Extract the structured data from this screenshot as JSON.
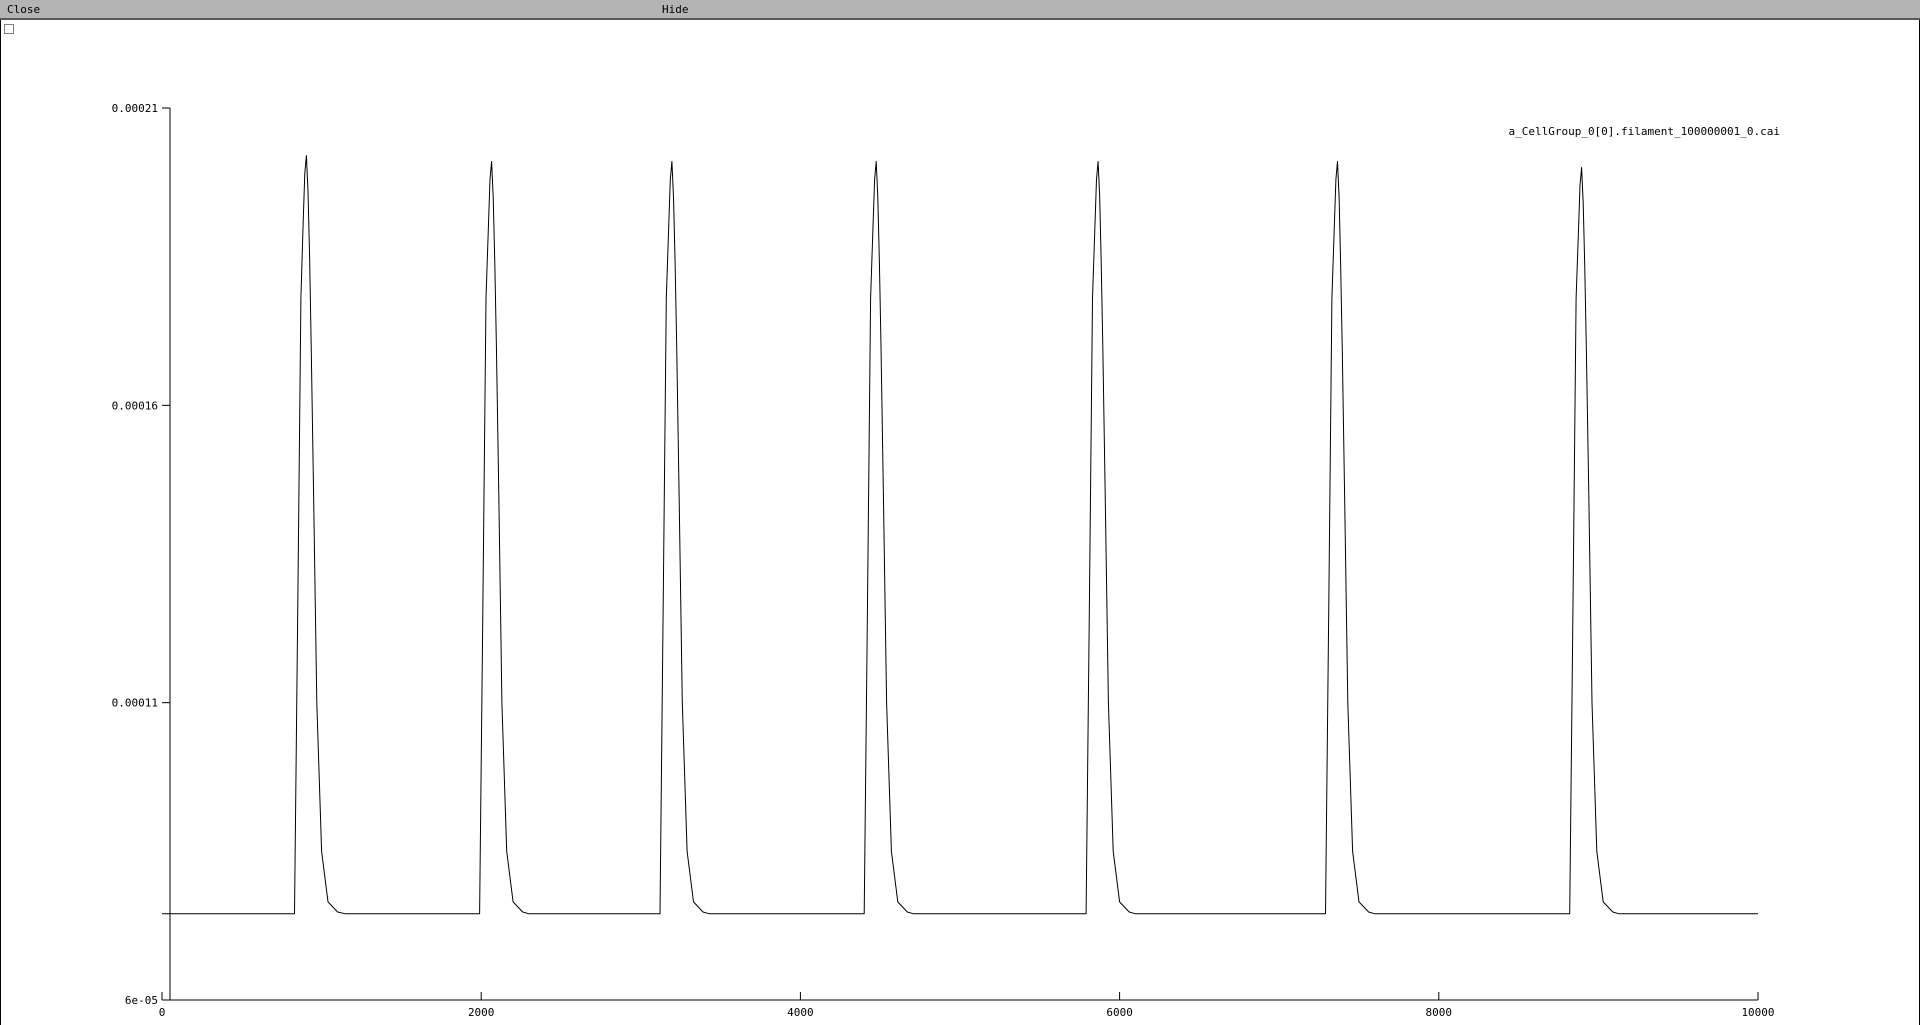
{
  "toolbar": {
    "close_label": "Close",
    "hide_label": "Hide"
  },
  "chart_data": {
    "type": "line",
    "title": "",
    "xlabel": "",
    "ylabel": "",
    "xlim": [
      0,
      10000
    ],
    "ylim": [
      6e-05,
      0.00021
    ],
    "x_ticks": [
      0,
      2000,
      4000,
      6000,
      8000,
      10000
    ],
    "x_tick_labels": [
      "0",
      "2000",
      "4000",
      "6000",
      "8000",
      "10000"
    ],
    "y_ticks": [
      6e-05,
      0.00011,
      0.00016,
      0.00021
    ],
    "y_tick_labels": [
      "6e-05",
      "0.00011",
      "0.00016",
      "0.00021"
    ],
    "grid": false,
    "legend": "top-right",
    "series": [
      {
        "name": "a_CellGroup_0[0].filament_100000001_0.cai",
        "color": "#000000",
        "x": [
          0,
          830,
          850,
          870,
          885,
          895,
          905,
          915,
          925,
          935,
          950,
          970,
          1000,
          1040,
          1100,
          1150,
          1990,
          2010,
          2030,
          2045,
          2055,
          2065,
          2075,
          2085,
          2095,
          2110,
          2130,
          2160,
          2200,
          2260,
          2300,
          3120,
          3140,
          3160,
          3175,
          3185,
          3195,
          3205,
          3215,
          3225,
          3240,
          3260,
          3290,
          3330,
          3390,
          3430,
          4400,
          4420,
          4440,
          4455,
          4465,
          4475,
          4485,
          4495,
          4505,
          4520,
          4540,
          4570,
          4610,
          4670,
          4710,
          5790,
          5810,
          5830,
          5845,
          5855,
          5865,
          5875,
          5885,
          5895,
          5910,
          5930,
          5960,
          6000,
          6060,
          6100,
          7290,
          7310,
          7330,
          7345,
          7355,
          7365,
          7375,
          7385,
          7395,
          7410,
          7430,
          7460,
          7500,
          7560,
          7600,
          8820,
          8840,
          8860,
          8875,
          8885,
          8895,
          8905,
          8915,
          8925,
          8940,
          8960,
          8990,
          9030,
          9090,
          9130,
          10000
        ],
        "y": [
          7.45e-05,
          7.45e-05,
          0.000125,
          0.000178,
          0.000191,
          0.000199,
          0.000202,
          0.000196,
          0.000185,
          0.00017,
          0.000145,
          0.00011,
          8.5e-05,
          7.65e-05,
          7.48e-05,
          7.45e-05,
          7.45e-05,
          0.000125,
          0.000178,
          0.00019,
          0.000198,
          0.000201,
          0.000195,
          0.000184,
          0.00017,
          0.000145,
          0.00011,
          8.5e-05,
          7.65e-05,
          7.48e-05,
          7.45e-05,
          7.45e-05,
          0.000125,
          0.000178,
          0.00019,
          0.000198,
          0.000201,
          0.000195,
          0.000184,
          0.00017,
          0.000145,
          0.00011,
          8.5e-05,
          7.65e-05,
          7.48e-05,
          7.45e-05,
          7.45e-05,
          0.000125,
          0.000178,
          0.00019,
          0.000198,
          0.000201,
          0.000195,
          0.000184,
          0.00017,
          0.000145,
          0.00011,
          8.5e-05,
          7.65e-05,
          7.48e-05,
          7.45e-05,
          7.45e-05,
          0.000125,
          0.000178,
          0.00019,
          0.000198,
          0.000201,
          0.000195,
          0.000184,
          0.00017,
          0.000145,
          0.00011,
          8.5e-05,
          7.65e-05,
          7.48e-05,
          7.45e-05,
          7.45e-05,
          0.000125,
          0.000178,
          0.00019,
          0.000198,
          0.000201,
          0.000195,
          0.000184,
          0.00017,
          0.000145,
          0.00011,
          8.5e-05,
          7.65e-05,
          7.48e-05,
          7.45e-05,
          7.45e-05,
          0.000125,
          0.000178,
          0.000189,
          0.000197,
          0.0002,
          0.000194,
          0.000183,
          0.000169,
          0.000145,
          0.00011,
          8.5e-05,
          7.65e-05,
          7.48e-05,
          7.45e-05,
          7.45e-05
        ]
      }
    ]
  }
}
